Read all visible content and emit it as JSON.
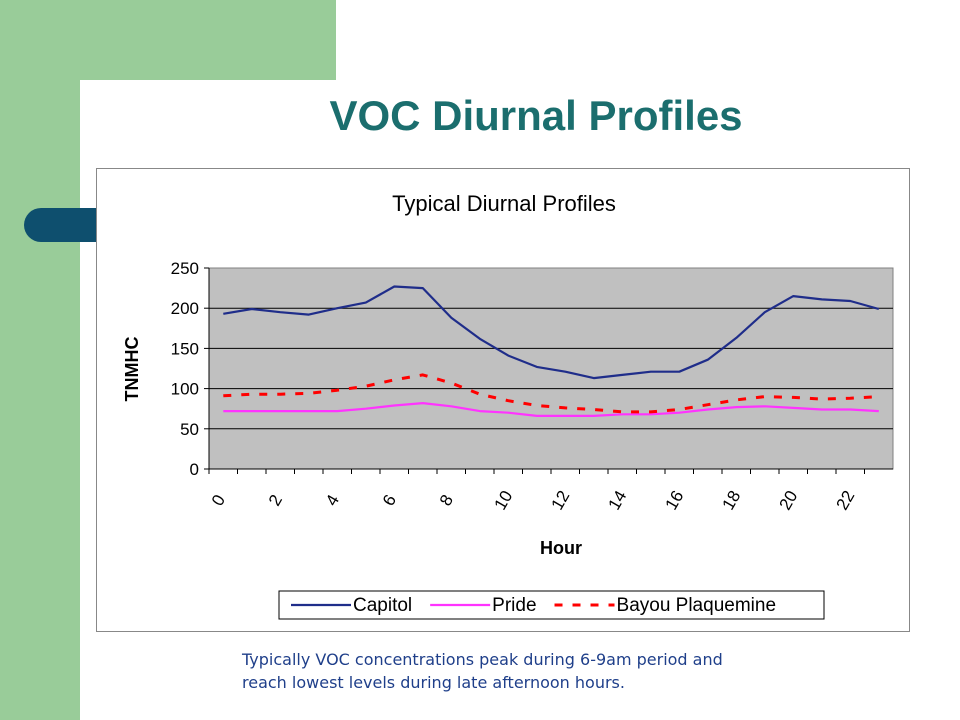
{
  "slide": {
    "title": "VOC Diurnal Profiles",
    "caption_line1": "Typically VOC concentrations peak during 6-9am period and",
    "caption_line2": "reach lowest levels during late afternoon hours.",
    "colors": {
      "accent_green": "#99cc99",
      "title_teal": "#1b6e6e",
      "tab_blue": "#0e4f6e",
      "caption_blue": "#1f3f8a"
    }
  },
  "chart_data": {
    "type": "line",
    "title": "Typical Diurnal Profiles",
    "xlabel": "Hour",
    "ylabel": "TNMHC",
    "ylim": [
      0,
      250
    ],
    "yticks": [
      0,
      50,
      100,
      150,
      200,
      250
    ],
    "xtick_labels": [
      "0",
      "2",
      "4",
      "6",
      "8",
      "10",
      "12",
      "14",
      "16",
      "18",
      "20",
      "22"
    ],
    "x": [
      0,
      1,
      2,
      3,
      4,
      5,
      6,
      7,
      8,
      9,
      10,
      11,
      12,
      13,
      14,
      15,
      16,
      17,
      18,
      19,
      20,
      21,
      22,
      23
    ],
    "grid": "horizontal",
    "legend_position": "bottom",
    "plot_background": "#c0c0c0",
    "series": [
      {
        "name": "Capitol",
        "color": "#1f2d8a",
        "style": "solid",
        "values": [
          193,
          199,
          195,
          192,
          200,
          207,
          227,
          225,
          188,
          162,
          141,
          127,
          121,
          113,
          117,
          121,
          121,
          136,
          163,
          195,
          215,
          211,
          209,
          199
        ]
      },
      {
        "name": "Pride",
        "color": "#ff33ff",
        "style": "solid",
        "values": [
          72,
          72,
          72,
          72,
          72,
          75,
          79,
          82,
          78,
          72,
          70,
          66,
          66,
          66,
          68,
          68,
          70,
          74,
          77,
          78,
          76,
          74,
          74,
          72
        ]
      },
      {
        "name": "Bayou Plaquemine",
        "color": "#ff0000",
        "style": "dashed",
        "values": [
          91,
          93,
          93,
          94,
          98,
          103,
          111,
          117,
          107,
          93,
          85,
          79,
          76,
          74,
          71,
          71,
          74,
          80,
          86,
          90,
          89,
          87,
          88,
          90
        ]
      }
    ]
  }
}
